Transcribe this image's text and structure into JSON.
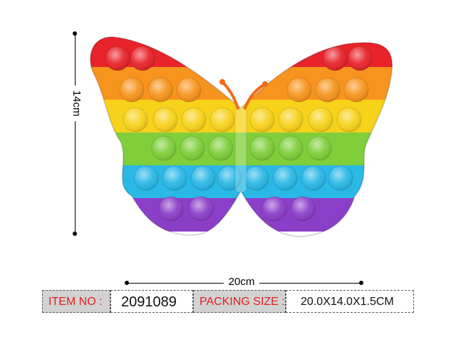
{
  "product": {
    "icon": "rainbow-butterfly-pop-it-icon",
    "bands": [
      "#e8232a",
      "#f7941d",
      "#f7d21a",
      "#7fce3a",
      "#2ab8e6",
      "#8b3fc9"
    ]
  },
  "dimensions": {
    "height_label": "14cm",
    "width_label": "20cm"
  },
  "info": {
    "item_no_label": "ITEM NO :",
    "item_no_value": "2091089",
    "packing_size_label": "PACKING SIZE :",
    "packing_size_value": "20.0X14.0X1.5CM"
  }
}
